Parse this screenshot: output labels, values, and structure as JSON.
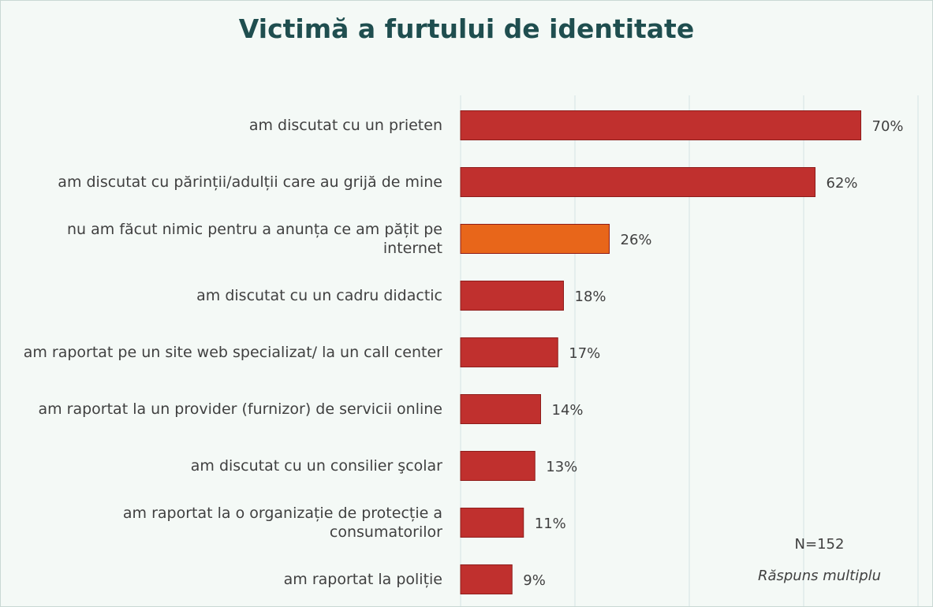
{
  "chart_data": {
    "type": "barh",
    "title": "Victimă a furtului de identitate",
    "categories": [
      "am discutat cu un prieten",
      "am discutat cu părinții/adulții care au grijă de mine",
      "nu am făcut nimic pentru a anunța ce am pățit pe internet",
      "am discutat cu un cadru didactic",
      "am raportat pe un site web specializat/ la un call center",
      "am raportat la un provider (furnizor) de servicii online",
      "am discutat cu un consilier şcolar",
      "am raportat la o organizație de protecție a consumatorilor",
      "am raportat la poliție"
    ],
    "values": [
      70,
      62,
      26,
      18,
      17,
      14,
      13,
      11,
      9
    ],
    "value_labels": [
      "70%",
      "62%",
      "26%",
      "18%",
      "17%",
      "14%",
      "13%",
      "11%",
      "9%"
    ],
    "colors": [
      "#c0302e",
      "#c0302e",
      "#e8661a",
      "#c0302e",
      "#c0302e",
      "#c0302e",
      "#c0302e",
      "#c0302e",
      "#c0302e"
    ],
    "xlim": [
      0,
      80
    ],
    "xticks": [
      0,
      20,
      40,
      60,
      80
    ],
    "grid": true,
    "annotations": [
      "N=152",
      "Răspuns multiplu"
    ]
  }
}
